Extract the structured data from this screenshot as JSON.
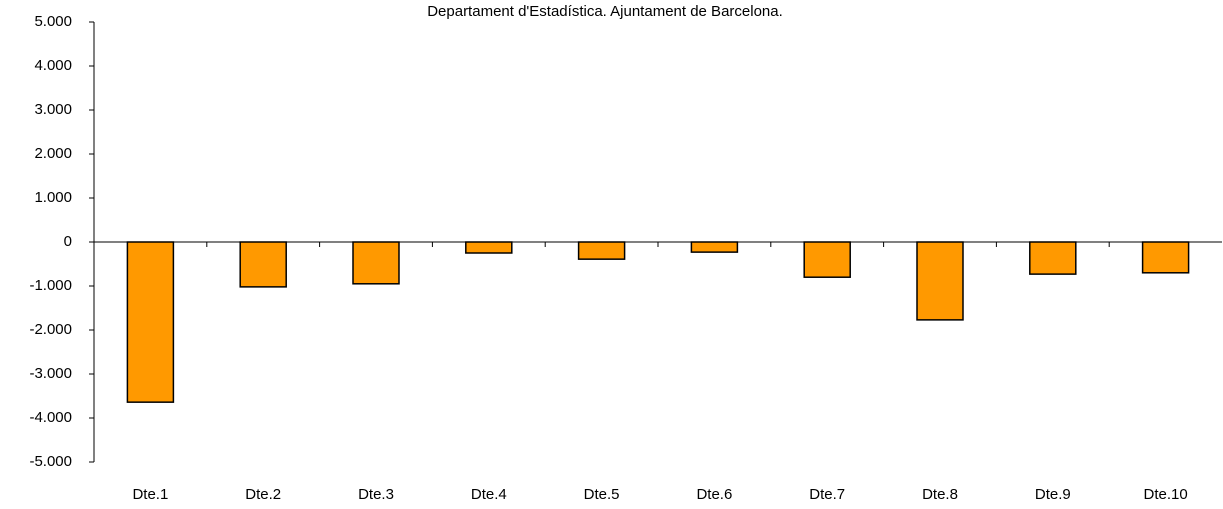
{
  "chart_data": {
    "type": "bar",
    "subtitle": "Departament d'Estadística. Ajuntament de Barcelona.",
    "categories": [
      "Dte.1",
      "Dte.2",
      "Dte.3",
      "Dte.4",
      "Dte.5",
      "Dte.6",
      "Dte.7",
      "Dte.8",
      "Dte.9",
      "Dte.10"
    ],
    "values": [
      -3640,
      -1020,
      -950,
      -250,
      -390,
      -230,
      -800,
      -1770,
      -730,
      -700
    ],
    "color": "#ff9900",
    "ylim": [
      -5000,
      5000
    ],
    "yticks": [
      {
        "value": 5000,
        "label": "5.000"
      },
      {
        "value": 4000,
        "label": "4.000"
      },
      {
        "value": 3000,
        "label": "3.000"
      },
      {
        "value": 2000,
        "label": "2.000"
      },
      {
        "value": 1000,
        "label": "1.000"
      },
      0,
      {
        "value": -1000,
        "label": "-1.000"
      },
      {
        "value": -2000,
        "label": "-2.000"
      },
      {
        "value": -3000,
        "label": "-3.000"
      },
      {
        "value": -4000,
        "label": "-4.000"
      },
      {
        "value": -5000,
        "label": "-5.000"
      }
    ],
    "grid": false
  }
}
